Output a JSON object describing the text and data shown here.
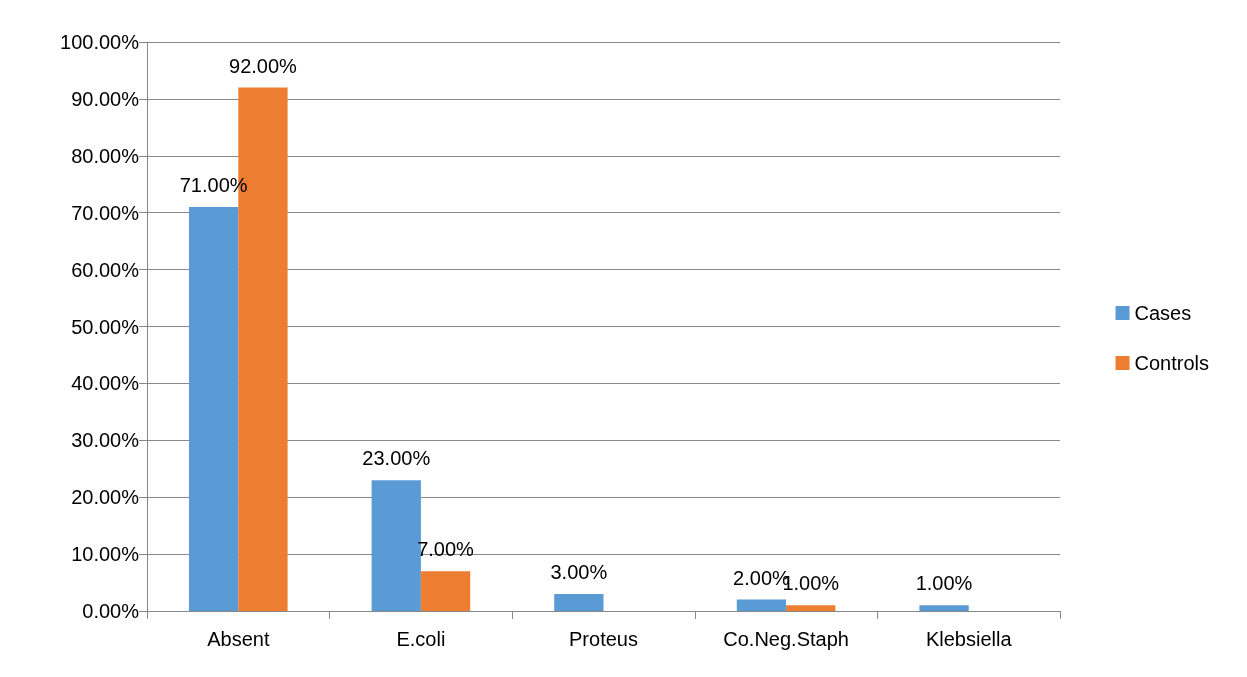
{
  "chart_data": {
    "type": "bar",
    "categories": [
      "Absent",
      "E.coli",
      "Proteus",
      "Co.Neg.Staph",
      "Klebsiella"
    ],
    "series": [
      {
        "name": "Cases",
        "color": "#5b9bd5",
        "values": [
          71,
          23,
          3,
          2,
          1
        ],
        "value_labels": [
          "71.00%",
          "23.00%",
          "3.00%",
          "2.00%",
          "1.00%"
        ]
      },
      {
        "name": "Controls",
        "color": "#ed7d31",
        "values": [
          92,
          7,
          null,
          1,
          null
        ],
        "value_labels": [
          "92.00%",
          "7.00%",
          null,
          "1.00%",
          null
        ]
      }
    ],
    "ylim": [
      0,
      100
    ],
    "yticks": [
      {
        "value": 0,
        "label": "0.00%"
      },
      {
        "value": 10,
        "label": "10.00%"
      },
      {
        "value": 20,
        "label": "20.00%"
      },
      {
        "value": 30,
        "label": "30.00%"
      },
      {
        "value": 40,
        "label": "40.00%"
      },
      {
        "value": 50,
        "label": "50.00%"
      },
      {
        "value": 60,
        "label": "60.00%"
      },
      {
        "value": 70,
        "label": "70.00%"
      },
      {
        "value": 80,
        "label": "80.00%"
      },
      {
        "value": 90,
        "label": "90.00%"
      },
      {
        "value": 100,
        "label": "100.00%"
      }
    ],
    "grid": "y",
    "legend": "right"
  }
}
